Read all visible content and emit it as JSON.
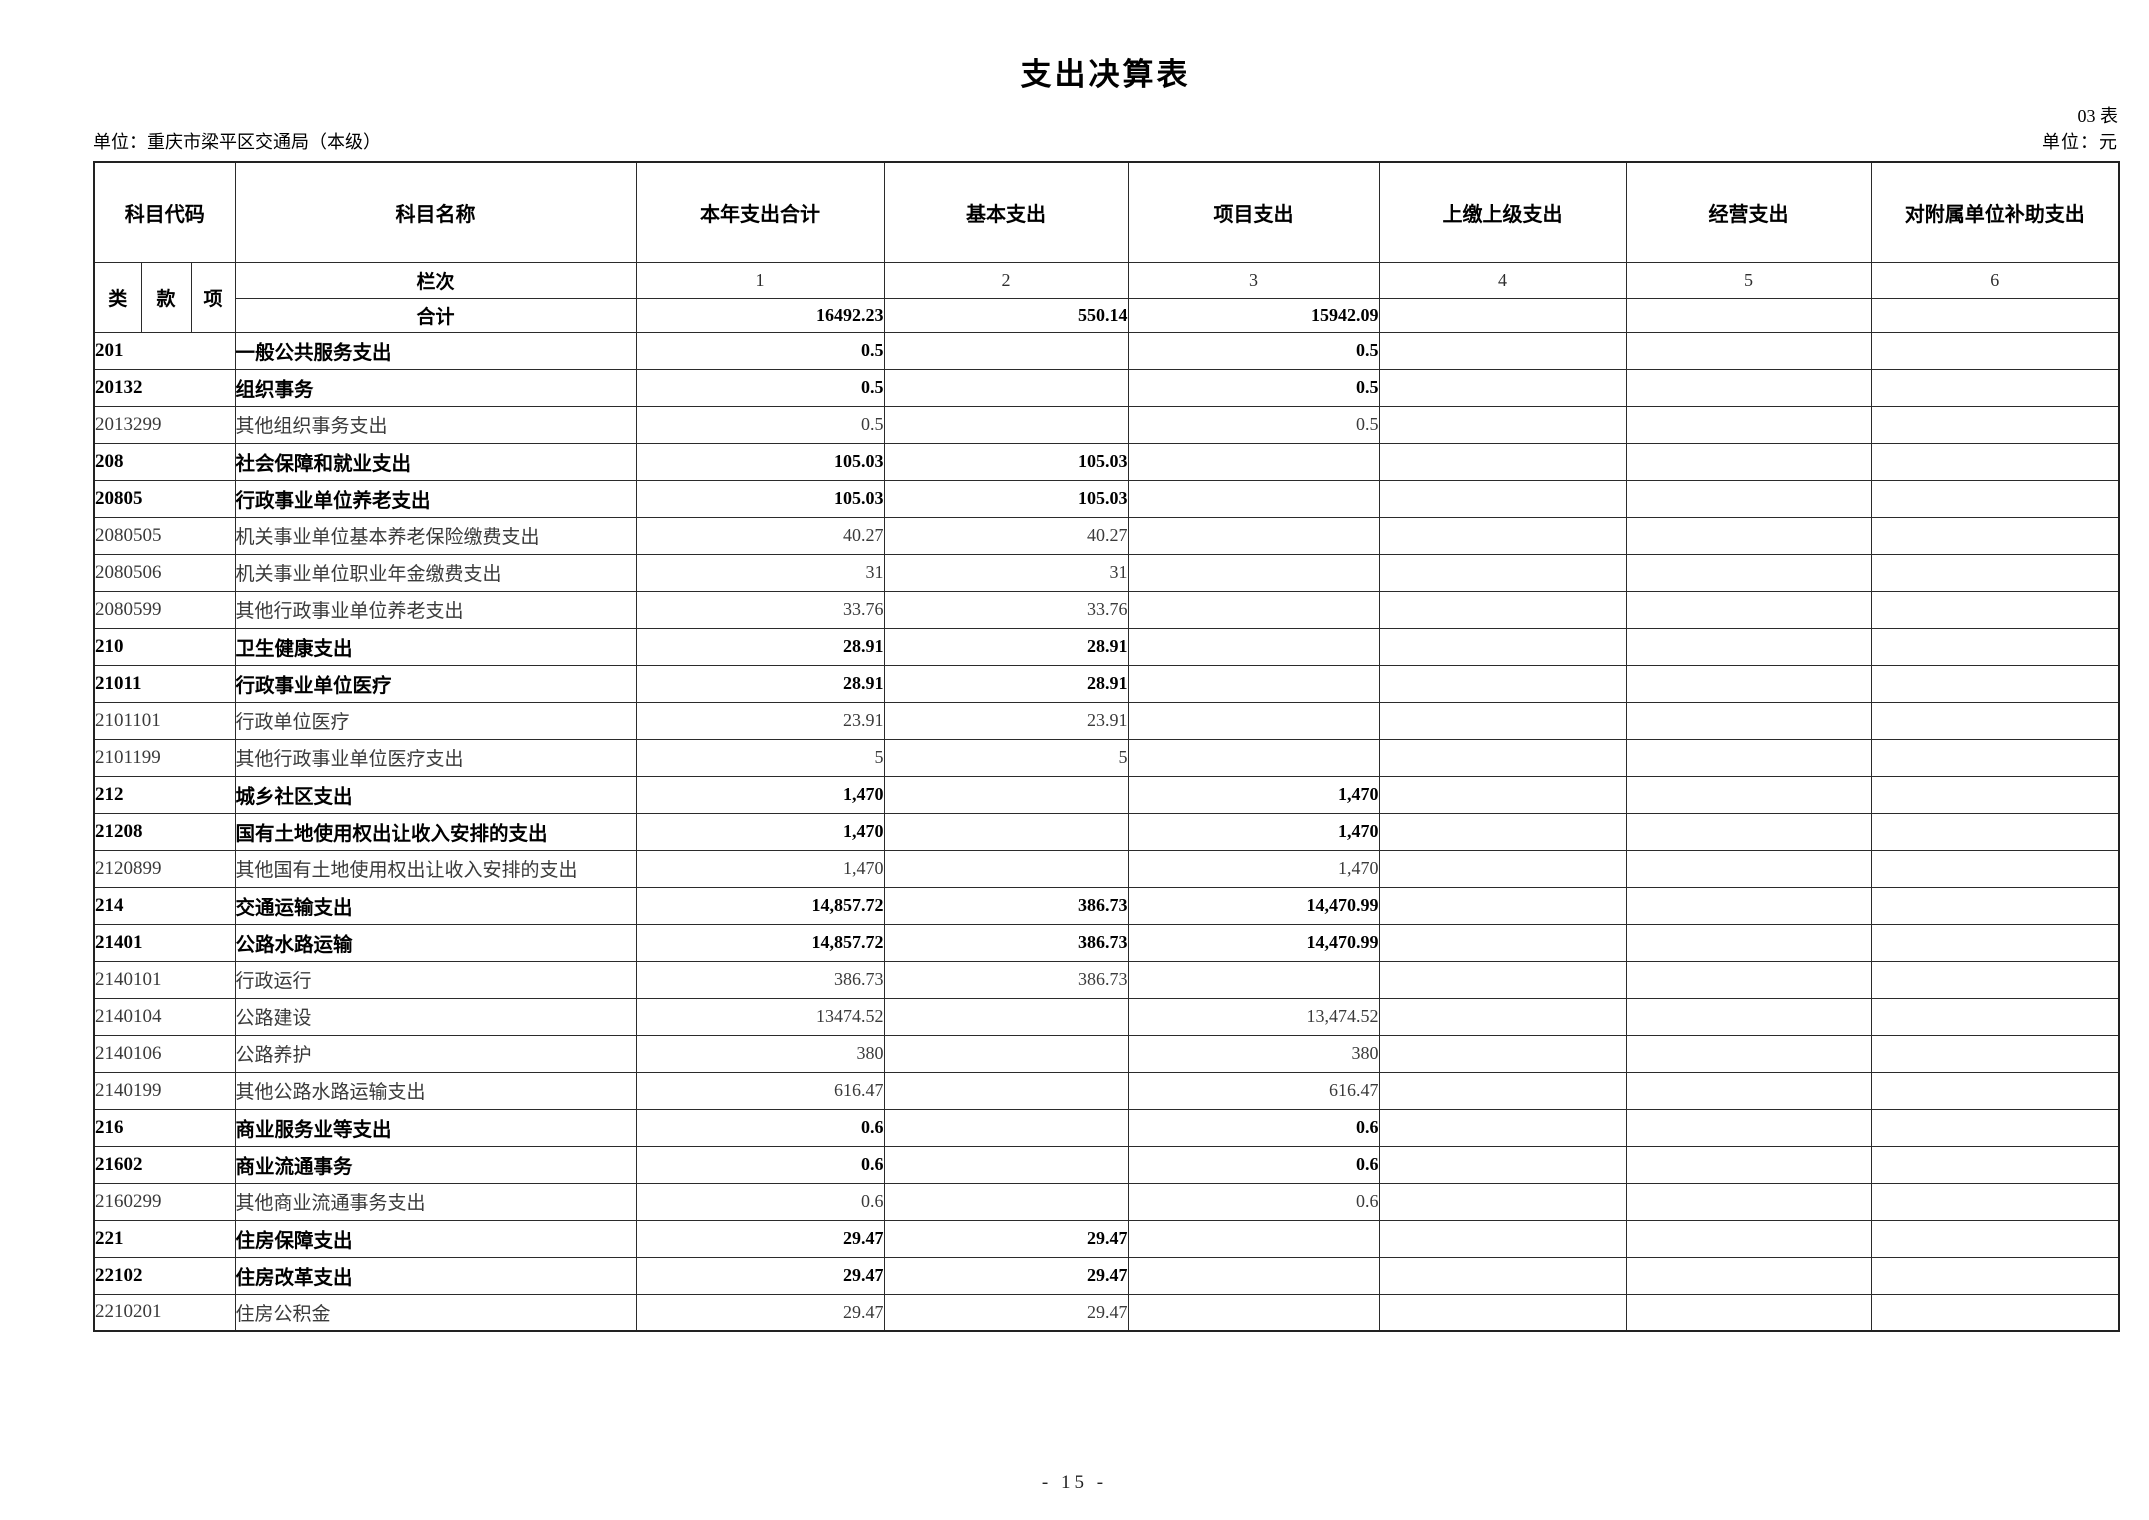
{
  "page": {
    "title": "支出决算表",
    "table_no": "03 表",
    "unit_label": "单位：重庆市梁平区交通局（本级）",
    "currency_label": "单位：元",
    "page_number": "- 15 -"
  },
  "colors": {
    "background": "#ffffff",
    "text": "#000000",
    "muted_text": "#3a3a3a",
    "border": "#2b2b2b"
  },
  "table": {
    "headers": {
      "code": "科目代码",
      "code_sub": [
        "类",
        "款",
        "项"
      ],
      "name": "科目名称",
      "cols": [
        "本年支出合计",
        "基本支出",
        "项目支出",
        "上缴上级支出",
        "经营支出",
        "对附属单位补助支出"
      ]
    },
    "lanci_label": "栏次",
    "lanci_numbers": [
      "1",
      "2",
      "3",
      "4",
      "5",
      "6"
    ],
    "total_label": "合计",
    "total_values": [
      "16492.23",
      "550.14",
      "15942.09",
      "",
      "",
      ""
    ],
    "rows": [
      {
        "code": "201",
        "name": "一般公共服务支出",
        "bold": true,
        "values": [
          "0.5",
          "",
          "0.5",
          "",
          "",
          ""
        ]
      },
      {
        "code": "20132",
        "name": "组织事务",
        "bold": true,
        "values": [
          "0.5",
          "",
          "0.5",
          "",
          "",
          ""
        ]
      },
      {
        "code": "2013299",
        "name": "其他组织事务支出",
        "bold": false,
        "values": [
          "0.5",
          "",
          "0.5",
          "",
          "",
          ""
        ]
      },
      {
        "code": "208",
        "name": "社会保障和就业支出",
        "bold": true,
        "values": [
          "105.03",
          "105.03",
          "",
          "",
          "",
          ""
        ]
      },
      {
        "code": "20805",
        "name": "行政事业单位养老支出",
        "bold": true,
        "values": [
          "105.03",
          "105.03",
          "",
          "",
          "",
          ""
        ]
      },
      {
        "code": "2080505",
        "name": "机关事业单位基本养老保险缴费支出",
        "bold": false,
        "values": [
          "40.27",
          "40.27",
          "",
          "",
          "",
          ""
        ]
      },
      {
        "code": "2080506",
        "name": "机关事业单位职业年金缴费支出",
        "bold": false,
        "values": [
          "31",
          "31",
          "",
          "",
          "",
          ""
        ]
      },
      {
        "code": "2080599",
        "name": "其他行政事业单位养老支出",
        "bold": false,
        "values": [
          "33.76",
          "33.76",
          "",
          "",
          "",
          ""
        ]
      },
      {
        "code": "210",
        "name": "卫生健康支出",
        "bold": true,
        "values": [
          "28.91",
          "28.91",
          "",
          "",
          "",
          ""
        ]
      },
      {
        "code": "21011",
        "name": "行政事业单位医疗",
        "bold": true,
        "values": [
          "28.91",
          "28.91",
          "",
          "",
          "",
          ""
        ]
      },
      {
        "code": "2101101",
        "name": "行政单位医疗",
        "bold": false,
        "values": [
          "23.91",
          "23.91",
          "",
          "",
          "",
          ""
        ]
      },
      {
        "code": "2101199",
        "name": "其他行政事业单位医疗支出",
        "bold": false,
        "values": [
          "5",
          "5",
          "",
          "",
          "",
          ""
        ]
      },
      {
        "code": "212",
        "name": "城乡社区支出",
        "bold": true,
        "values": [
          "1,470",
          "",
          "1,470",
          "",
          "",
          ""
        ]
      },
      {
        "code": "21208",
        "name": "国有土地使用权出让收入安排的支出",
        "bold": true,
        "values": [
          "1,470",
          "",
          "1,470",
          "",
          "",
          ""
        ]
      },
      {
        "code": "2120899",
        "name": "其他国有土地使用权出让收入安排的支出",
        "bold": false,
        "values": [
          "1,470",
          "",
          "1,470",
          "",
          "",
          ""
        ]
      },
      {
        "code": "214",
        "name": "交通运输支出",
        "bold": true,
        "values": [
          "14,857.72",
          "386.73",
          "14,470.99",
          "",
          "",
          ""
        ]
      },
      {
        "code": "21401",
        "name": "公路水路运输",
        "bold": true,
        "values": [
          "14,857.72",
          "386.73",
          "14,470.99",
          "",
          "",
          ""
        ]
      },
      {
        "code": "2140101",
        "name": "行政运行",
        "bold": false,
        "values": [
          "386.73",
          "386.73",
          "",
          "",
          "",
          ""
        ]
      },
      {
        "code": "2140104",
        "name": "公路建设",
        "bold": false,
        "values": [
          "13474.52",
          "",
          "13,474.52",
          "",
          "",
          ""
        ]
      },
      {
        "code": "2140106",
        "name": "公路养护",
        "bold": false,
        "values": [
          "380",
          "",
          "380",
          "",
          "",
          ""
        ]
      },
      {
        "code": "2140199",
        "name": "其他公路水路运输支出",
        "bold": false,
        "values": [
          "616.47",
          "",
          "616.47",
          "",
          "",
          ""
        ]
      },
      {
        "code": "216",
        "name": "商业服务业等支出",
        "bold": true,
        "values": [
          "0.6",
          "",
          "0.6",
          "",
          "",
          ""
        ]
      },
      {
        "code": "21602",
        "name": "商业流通事务",
        "bold": true,
        "values": [
          "0.6",
          "",
          "0.6",
          "",
          "",
          ""
        ]
      },
      {
        "code": "2160299",
        "name": "其他商业流通事务支出",
        "bold": false,
        "values": [
          "0.6",
          "",
          "0.6",
          "",
          "",
          ""
        ]
      },
      {
        "code": "221",
        "name": "住房保障支出",
        "bold": true,
        "values": [
          "29.47",
          "29.47",
          "",
          "",
          "",
          ""
        ]
      },
      {
        "code": "22102",
        "name": "住房改革支出",
        "bold": true,
        "values": [
          "29.47",
          "29.47",
          "",
          "",
          "",
          ""
        ]
      },
      {
        "code": "2210201",
        "name": "住房公积金",
        "bold": false,
        "values": [
          "29.47",
          "29.47",
          "",
          "",
          "",
          ""
        ]
      }
    ]
  }
}
